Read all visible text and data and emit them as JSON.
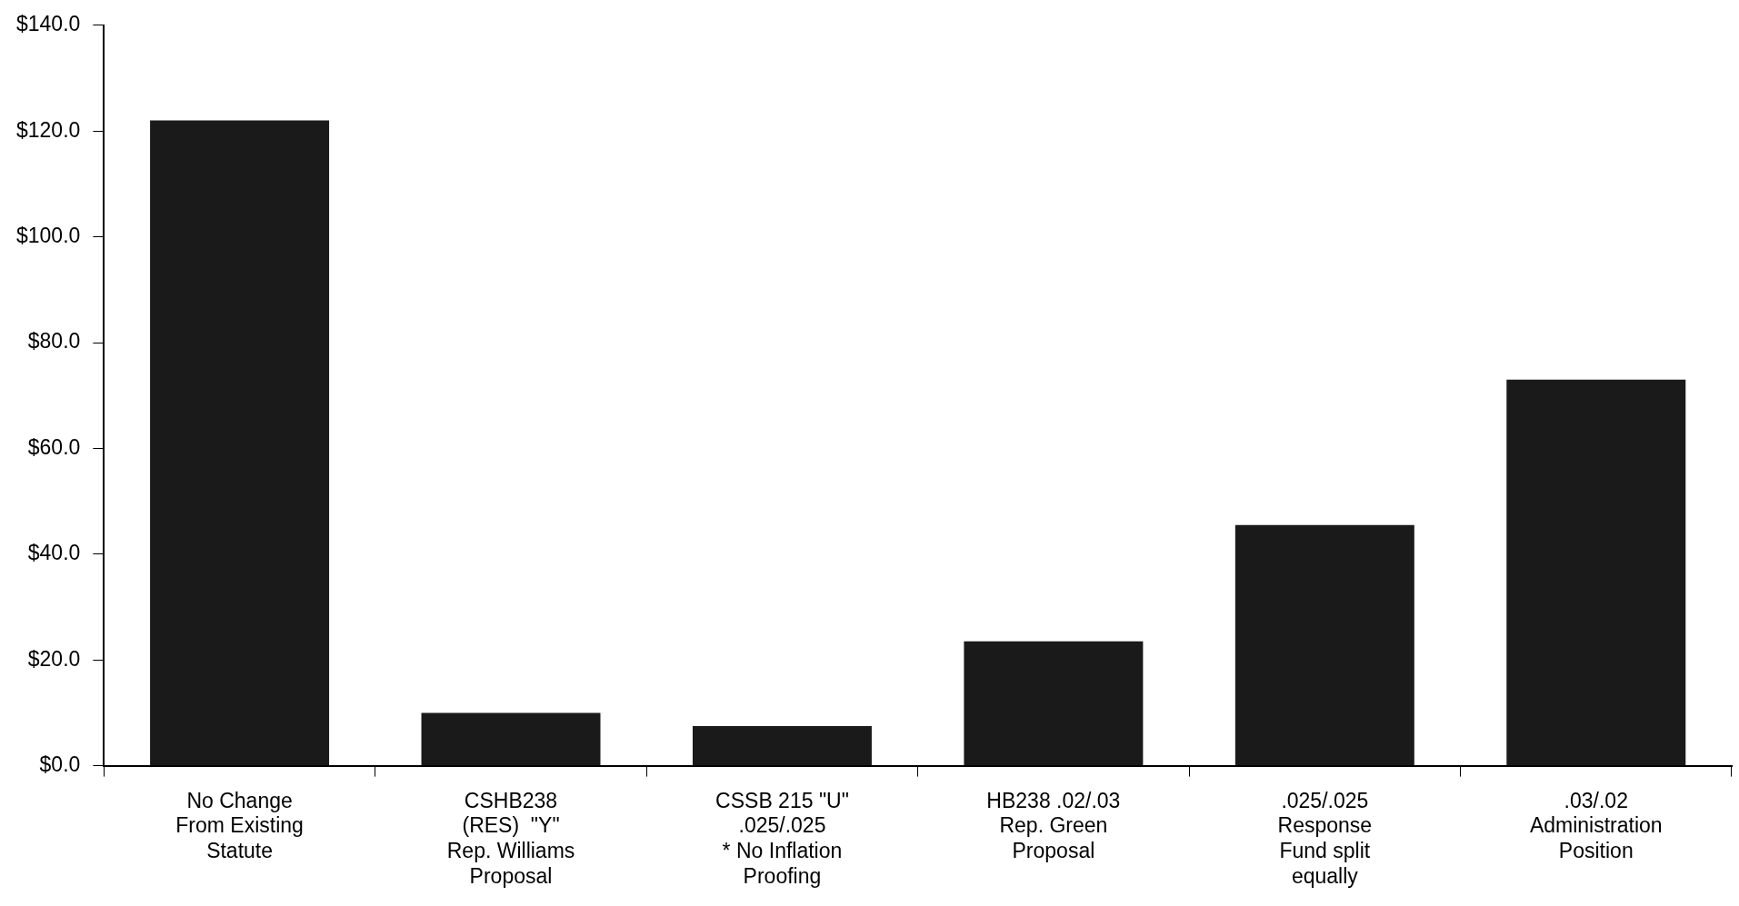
{
  "chart_data": {
    "type": "bar",
    "categories": [
      "No Change\nFrom Existing\nStatute",
      "CSHB238\n(RES)  \"Y\"\nRep. Williams\nProposal",
      "CSSB 215 \"U\"\n.025/.025\n* No Inflation\nProofing",
      "HB238 .02/.03\nRep. Green\nProposal",
      ".025/.025\nResponse\nFund split\nequally",
      ".03/.02\nAdministration\nPosition"
    ],
    "values": [
      122,
      10,
      7.5,
      23.5,
      45.5,
      73
    ],
    "color": "#1a1a1a",
    "ylim": [
      0,
      140
    ],
    "yticks": [
      {
        "value": 0,
        "label": "$0.0"
      },
      {
        "value": 20,
        "label": "$20.0"
      },
      {
        "value": 40,
        "label": "$40.0"
      },
      {
        "value": 60,
        "label": "$60.0"
      },
      {
        "value": 80,
        "label": "$80.0"
      },
      {
        "value": 100,
        "label": "$100.0"
      },
      {
        "value": 120,
        "label": "$120.0"
      },
      {
        "value": 140,
        "label": "$140.0"
      }
    ],
    "grid": false,
    "legend": false
  }
}
